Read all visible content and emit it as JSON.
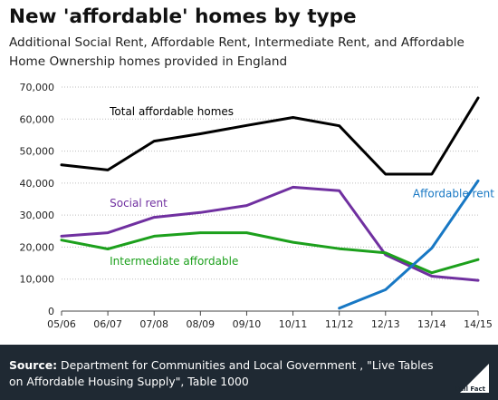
{
  "header": {
    "title": "New 'affordable' homes by type",
    "subtitle": "Additional Social Rent, Affordable Rent, Intermediate Rent, and Affordable Home Ownership homes provided in England"
  },
  "footer": {
    "source_label": "Source:",
    "source_text": "Department for Communities and Local Government , \"Live Tables on Affordable Housing Supply\", Table 1000",
    "logo_text": "Full Fact"
  },
  "chart_data": {
    "type": "line",
    "categories": [
      "05/06",
      "06/07",
      "07/08",
      "08/09",
      "09/10",
      "10/11",
      "11/12",
      "12/13",
      "13/14",
      "14/15"
    ],
    "ylim": [
      0,
      70000
    ],
    "yticks": [
      0,
      10000,
      20000,
      30000,
      40000,
      50000,
      60000,
      70000
    ],
    "ytick_labels": [
      "0",
      "10,000",
      "20,000",
      "30,000",
      "40,000",
      "50,000",
      "60,000",
      "70,000"
    ],
    "grid": true,
    "series": [
      {
        "name": "Total affordable homes",
        "color": "#000000",
        "label_at": [
          1,
          61200
        ],
        "values": [
          45700,
          44100,
          53100,
          55400,
          58000,
          60500,
          57900,
          42800,
          42800,
          66600
        ]
      },
      {
        "name": "Social rent",
        "color": "#7030a0",
        "label_at": [
          1,
          32600
        ],
        "values": [
          23400,
          24500,
          29300,
          30800,
          33000,
          38700,
          37600,
          17600,
          10900,
          9600
        ]
      },
      {
        "name": "Intermediate affordable",
        "color": "#1ca01c",
        "label_at": [
          1,
          14500
        ],
        "values": [
          22200,
          19400,
          23400,
          24500,
          24500,
          21500,
          19500,
          18200,
          12000,
          16100
        ]
      },
      {
        "name": "Affordable rent",
        "color": "#1878c4",
        "label_at": [
          7.55,
          35600
        ],
        "values": [
          null,
          null,
          null,
          null,
          null,
          null,
          900,
          6700,
          19700,
          40700
        ]
      }
    ]
  }
}
